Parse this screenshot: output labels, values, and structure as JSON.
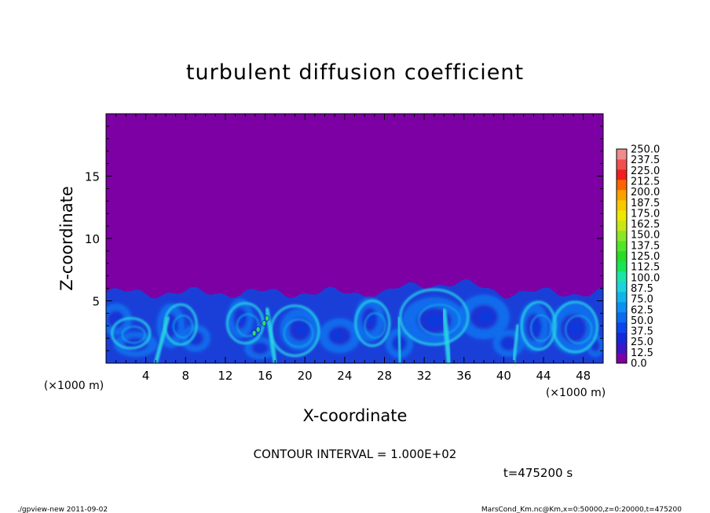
{
  "chart_data": {
    "type": "heatmap",
    "title": "turbulent diffusion coefficient",
    "xlabel": "X-coordinate",
    "ylabel": "Z-coordinate",
    "x_unit_left": "(×1000 m)",
    "x_unit_right": "(×1000 m)",
    "xlim": [
      0,
      50
    ],
    "ylim": [
      0,
      20
    ],
    "x_ticks": [
      4,
      8,
      12,
      16,
      20,
      24,
      28,
      32,
      36,
      40,
      44,
      48
    ],
    "y_ticks": [
      5,
      10,
      15
    ],
    "contour_interval_text": "CONTOUR INTERVAL = 1.000E+02",
    "time_text": "t=475200 s",
    "background_value": 0.0,
    "turbulent_layer_top_km": 6,
    "colorbar": {
      "levels": [
        0.0,
        12.5,
        25.0,
        37.5,
        50.0,
        62.5,
        75.0,
        87.5,
        100.0,
        112.5,
        125.0,
        137.5,
        150.0,
        162.5,
        175.0,
        187.5,
        200.0,
        212.5,
        225.0,
        237.5,
        250.0
      ],
      "labels": [
        "0.0",
        "12.5",
        "25.0",
        "37.5",
        "50.0",
        "62.5",
        "75.0",
        "87.5",
        "100.0",
        "112.5",
        "125.0",
        "137.5",
        "150.0",
        "162.5",
        "175.0",
        "187.5",
        "200.0",
        "212.5",
        "225.0",
        "237.5",
        "250.0"
      ],
      "colors": [
        "#7d00a5",
        "#3a17c8",
        "#1428dc",
        "#0a46ee",
        "#0a6af0",
        "#0a90f0",
        "#10b4e8",
        "#1cd2dc",
        "#1ce4a8",
        "#18e45a",
        "#28dc28",
        "#50e628",
        "#8ce628",
        "#c8e614",
        "#f0e600",
        "#f8c800",
        "#fca000",
        "#fc6400",
        "#f01e1e",
        "#f05050",
        "#f08c8c"
      ]
    }
  },
  "footer": {
    "left": "./gpview-new   2011-09-02",
    "right": "MarsCond_Km.nc@Km,x=0:50000,z=0:20000,t=475200"
  }
}
